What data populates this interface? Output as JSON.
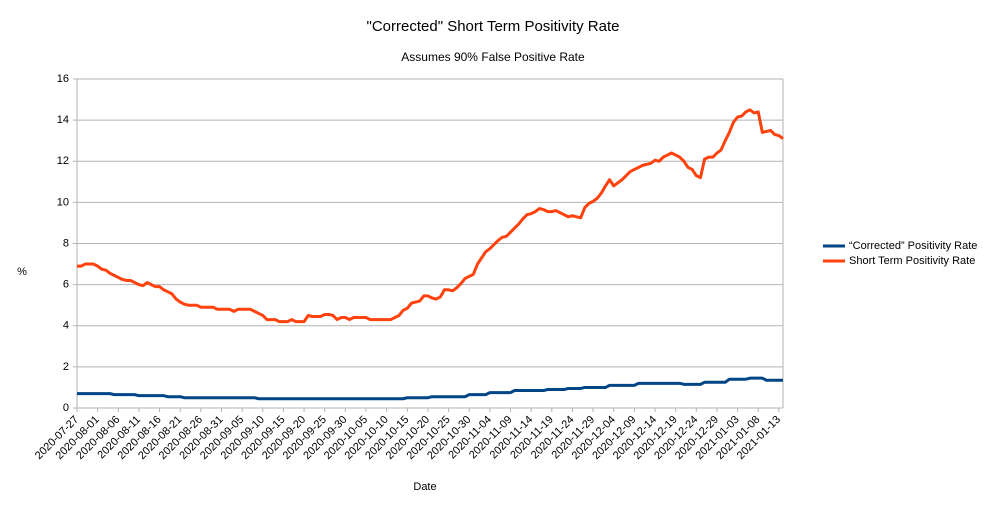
{
  "chart_data": {
    "type": "line",
    "title": "\"Corrected\" Short Term Positivity Rate",
    "subtitle": "Assumes 90% False Positive Rate",
    "x_label": "Date",
    "y_label": "%",
    "ylim": [
      0,
      16
    ],
    "yticks": [
      0,
      2,
      4,
      6,
      8,
      10,
      12,
      14,
      16
    ],
    "grid": true,
    "legend": "right",
    "categories": [
      "2020-07-27",
      null,
      null,
      null,
      null,
      "2020-08-01",
      null,
      null,
      null,
      null,
      "2020-08-06",
      null,
      null,
      null,
      null,
      "2020-08-11",
      null,
      null,
      null,
      null,
      "2020-08-16",
      null,
      null,
      null,
      null,
      "2020-08-21",
      null,
      null,
      null,
      null,
      "2020-08-26",
      null,
      null,
      null,
      null,
      "2020-08-31",
      null,
      null,
      null,
      null,
      "2020-09-05",
      null,
      null,
      null,
      null,
      "2020-09-10",
      null,
      null,
      null,
      null,
      "2020-09-15",
      null,
      null,
      null,
      null,
      "2020-09-20",
      null,
      null,
      null,
      null,
      "2020-09-25",
      null,
      null,
      null,
      null,
      "2020-09-30",
      null,
      null,
      null,
      null,
      "2020-10-05",
      null,
      null,
      null,
      null,
      "2020-10-10",
      null,
      null,
      null,
      null,
      "2020-10-15",
      null,
      null,
      null,
      null,
      "2020-10-20",
      null,
      null,
      null,
      null,
      "2020-10-25",
      null,
      null,
      null,
      null,
      "2020-10-30",
      null,
      null,
      null,
      null,
      "2020-11-04",
      null,
      null,
      null,
      null,
      "2020-11-09",
      null,
      null,
      null,
      null,
      "2020-11-14",
      null,
      null,
      null,
      null,
      "2020-11-19",
      null,
      null,
      null,
      null,
      "2020-11-24",
      null,
      null,
      null,
      null,
      "2020-11-29",
      null,
      null,
      null,
      null,
      "2020-12-04",
      null,
      null,
      null,
      null,
      "2020-12-09",
      null,
      null,
      null,
      null,
      "2020-12-14",
      null,
      null,
      null,
      null,
      "2020-12-19",
      null,
      null,
      null,
      null,
      "2020-12-24",
      null,
      null,
      null,
      null,
      "2020-12-29",
      null,
      null,
      null,
      null,
      "2021-01-03",
      null,
      null,
      null,
      null,
      "2021-01-08",
      null,
      null,
      null,
      null,
      "2021-01-13",
      null
    ],
    "series": [
      {
        "name": "“Corrected” Positivity Rate",
        "color": "#004586",
        "values": [
          0.7,
          0.7,
          0.7,
          0.7,
          0.7,
          0.7,
          0.7,
          0.7,
          0.7,
          0.65,
          0.65,
          0.65,
          0.65,
          0.65,
          0.65,
          0.6,
          0.6,
          0.6,
          0.6,
          0.6,
          0.6,
          0.6,
          0.55,
          0.55,
          0.55,
          0.55,
          0.5,
          0.5,
          0.5,
          0.5,
          0.5,
          0.5,
          0.5,
          0.5,
          0.5,
          0.5,
          0.5,
          0.5,
          0.5,
          0.5,
          0.5,
          0.5,
          0.5,
          0.5,
          0.45,
          0.45,
          0.45,
          0.45,
          0.45,
          0.45,
          0.45,
          0.45,
          0.45,
          0.45,
          0.45,
          0.45,
          0.45,
          0.45,
          0.45,
          0.45,
          0.45,
          0.45,
          0.45,
          0.45,
          0.45,
          0.45,
          0.45,
          0.45,
          0.45,
          0.45,
          0.45,
          0.45,
          0.45,
          0.45,
          0.45,
          0.45,
          0.45,
          0.45,
          0.45,
          0.45,
          0.5,
          0.5,
          0.5,
          0.5,
          0.5,
          0.5,
          0.55,
          0.55,
          0.55,
          0.55,
          0.55,
          0.55,
          0.55,
          0.55,
          0.55,
          0.65,
          0.65,
          0.65,
          0.65,
          0.65,
          0.75,
          0.75,
          0.75,
          0.75,
          0.75,
          0.75,
          0.85,
          0.85,
          0.85,
          0.85,
          0.85,
          0.85,
          0.85,
          0.85,
          0.9,
          0.9,
          0.9,
          0.9,
          0.9,
          0.95,
          0.95,
          0.95,
          0.95,
          1.0,
          1.0,
          1.0,
          1.0,
          1.0,
          1.0,
          1.1,
          1.1,
          1.1,
          1.1,
          1.1,
          1.1,
          1.1,
          1.2,
          1.2,
          1.2,
          1.2,
          1.2,
          1.2,
          1.2,
          1.2,
          1.2,
          1.2,
          1.2,
          1.15,
          1.15,
          1.15,
          1.15,
          1.15,
          1.25,
          1.25,
          1.25,
          1.25,
          1.25,
          1.25,
          1.4,
          1.4,
          1.4,
          1.4,
          1.4,
          1.45,
          1.45,
          1.45,
          1.45,
          1.35,
          1.35,
          1.35,
          1.35,
          1.35
        ]
      },
      {
        "name": "Short Term Positivity Rate",
        "color": "#ff420e",
        "values": [
          6.9,
          6.9,
          7.0,
          7.0,
          7.0,
          6.9,
          6.75,
          6.7,
          6.55,
          6.45,
          6.35,
          6.25,
          6.2,
          6.2,
          6.1,
          6.0,
          5.95,
          6.1,
          6.0,
          5.9,
          5.9,
          5.75,
          5.65,
          5.55,
          5.3,
          5.15,
          5.05,
          5.0,
          5.0,
          5.0,
          4.9,
          4.9,
          4.9,
          4.9,
          4.8,
          4.8,
          4.8,
          4.8,
          4.7,
          4.8,
          4.8,
          4.8,
          4.8,
          4.7,
          4.6,
          4.5,
          4.3,
          4.3,
          4.3,
          4.2,
          4.2,
          4.2,
          4.3,
          4.2,
          4.2,
          4.2,
          4.5,
          4.45,
          4.45,
          4.45,
          4.55,
          4.55,
          4.5,
          4.3,
          4.4,
          4.4,
          4.3,
          4.4,
          4.4,
          4.4,
          4.4,
          4.3,
          4.3,
          4.3,
          4.3,
          4.3,
          4.3,
          4.4,
          4.5,
          4.75,
          4.85,
          5.1,
          5.15,
          5.2,
          5.45,
          5.45,
          5.35,
          5.3,
          5.4,
          5.75,
          5.75,
          5.7,
          5.85,
          6.05,
          6.3,
          6.4,
          6.5,
          7.0,
          7.3,
          7.6,
          7.75,
          7.95,
          8.15,
          8.3,
          8.35,
          8.55,
          8.75,
          8.95,
          9.2,
          9.4,
          9.45,
          9.55,
          9.7,
          9.65,
          9.55,
          9.55,
          9.6,
          9.5,
          9.4,
          9.3,
          9.35,
          9.3,
          9.25,
          9.75,
          9.95,
          10.05,
          10.2,
          10.45,
          10.8,
          11.1,
          10.8,
          10.95,
          11.1,
          11.3,
          11.5,
          11.6,
          11.7,
          11.8,
          11.85,
          11.9,
          12.05,
          12.0,
          12.2,
          12.3,
          12.4,
          12.3,
          12.2,
          12.0,
          11.7,
          11.6,
          11.3,
          11.2,
          12.1,
          12.2,
          12.2,
          12.4,
          12.55,
          13.0,
          13.4,
          13.9,
          14.15,
          14.2,
          14.4,
          14.5,
          14.35,
          14.4,
          13.4,
          13.45,
          13.5,
          13.3,
          13.25,
          13.1
        ]
      }
    ]
  }
}
